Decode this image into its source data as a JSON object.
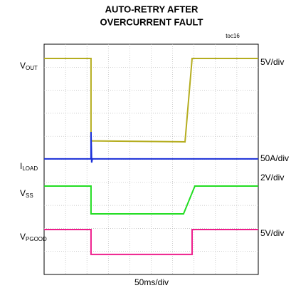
{
  "chart_data": {
    "type": "scope",
    "title": [
      "AUTO-RETRY AFTER",
      "OVERCURRENT FAULT"
    ],
    "figure_id": "toc16",
    "x_scale": "50ms/div",
    "xlim": [
      0,
      10
    ],
    "ylim": [
      0,
      10
    ],
    "grid": {
      "x": 10,
      "y": 10
    },
    "series": [
      {
        "name": {
          "main": "V",
          "sub": "OUT"
        },
        "scale": "5V/div",
        "color": "#b5ad1f",
        "x": [
          0,
          2.19,
          2.19,
          6.58,
          6.91,
          10
        ],
        "y": [
          9.38,
          9.38,
          5.8,
          5.76,
          9.38,
          9.38
        ]
      },
      {
        "name": {
          "main": "I",
          "sub": "LOAD"
        },
        "scale": "50A/div",
        "color": "#1a2fd8",
        "x": [
          0,
          2.19,
          2.19,
          2.22,
          2.25,
          10
        ],
        "y": [
          5.02,
          5.02,
          6.19,
          4.86,
          5.02,
          5.02
        ]
      },
      {
        "name": {
          "main": "V",
          "sub": "SS"
        },
        "scale": "2V/div",
        "color": "#22dd22",
        "x": [
          0,
          2.19,
          2.19,
          6.51,
          7.04,
          10
        ],
        "y": [
          3.84,
          3.84,
          2.63,
          2.63,
          3.84,
          3.84
        ]
      },
      {
        "name": {
          "main": "V",
          "sub": "PGOOD"
        },
        "scale": "5V/div",
        "color": "#ee1e8c",
        "x": [
          0,
          2.19,
          2.19,
          6.91,
          6.91,
          10
        ],
        "y": [
          1.95,
          1.95,
          0.87,
          0.87,
          1.95,
          1.95
        ]
      }
    ]
  }
}
